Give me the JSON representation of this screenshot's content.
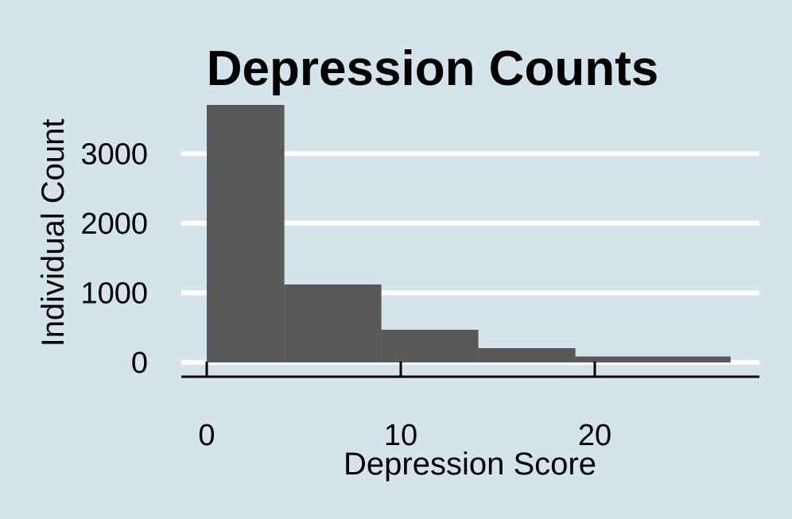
{
  "chart_data": {
    "type": "bar",
    "title": "Depression Counts",
    "xlabel": "Depression Score",
    "ylabel": "Individual Count",
    "bins": [
      {
        "x0": 0,
        "x1": 4,
        "count": 3700
      },
      {
        "x0": 4,
        "x1": 9,
        "count": 1120
      },
      {
        "x0": 9,
        "x1": 14,
        "count": 470
      },
      {
        "x0": 14,
        "x1": 19,
        "count": 205
      },
      {
        "x0": 19,
        "x1": 27,
        "count": 85
      }
    ],
    "xticks": [
      0,
      10,
      20
    ],
    "yticks": [
      0,
      1000,
      2000,
      3000
    ],
    "xlim": [
      -1.3,
      28.5
    ],
    "ylim": [
      0,
      3700
    ],
    "grid": "horizontal",
    "colors": {
      "background": "#d5e4eb",
      "bar": "#595959",
      "grid": "#ffffff",
      "axis": "#000000"
    }
  }
}
